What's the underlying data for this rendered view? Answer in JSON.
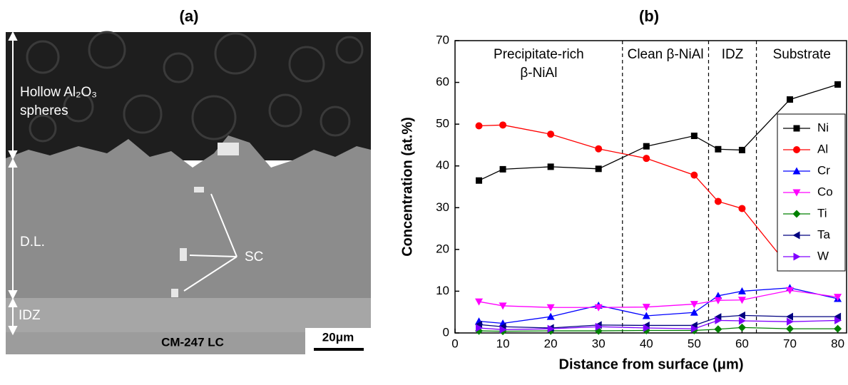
{
  "image": {
    "title": "(a)",
    "coating_label": [
      "Hollow Al₂O₃",
      "spheres"
    ],
    "diffusion_label": "D.L.",
    "phase_label": "SC",
    "idz_label": "IDZ",
    "substrate_label": "CM-247 LC",
    "scale_bar": "20μm"
  },
  "chart_data": {
    "type": "line",
    "title": "(b)",
    "x_label": "Distance from surface (μm)",
    "y_label": "Concentration (at.%)",
    "x": [
      5,
      10,
      20,
      30,
      40,
      50,
      55,
      60,
      70,
      80
    ],
    "series": [
      {
        "name": "Ni",
        "color": "#000000",
        "marker": "square",
        "values": [
          36.5,
          39.2,
          39.8,
          39.3,
          44.7,
          47.2,
          44.0,
          43.8,
          55.9,
          59.5
        ]
      },
      {
        "name": "Al",
        "color": "#ff0000",
        "marker": "circle",
        "values": [
          49.6,
          49.8,
          47.6,
          44.1,
          41.8,
          37.8,
          31.5,
          29.8,
          15.6,
          15.9
        ]
      },
      {
        "name": "Cr",
        "color": "#0000ff",
        "marker": "triangle-up",
        "values": [
          2.8,
          2.3,
          3.9,
          6.6,
          4.1,
          4.9,
          8.9,
          10.0,
          10.8,
          8.2
        ]
      },
      {
        "name": "Co",
        "color": "#ff00ff",
        "marker": "triangle-down",
        "values": [
          7.5,
          6.5,
          6.1,
          6.1,
          6.2,
          6.9,
          7.8,
          7.9,
          10.2,
          8.6
        ]
      },
      {
        "name": "Ti",
        "color": "#008000",
        "marker": "diamond",
        "values": [
          0.5,
          0.4,
          0.5,
          0.5,
          0.6,
          0.6,
          0.9,
          1.3,
          1.0,
          1.0
        ]
      },
      {
        "name": "Ta",
        "color": "#000080",
        "marker": "triangle-left",
        "values": [
          2.0,
          1.5,
          1.2,
          1.9,
          1.8,
          1.8,
          3.8,
          4.2,
          3.9,
          3.9
        ]
      },
      {
        "name": "W",
        "color": "#8000ff",
        "marker": "triangle-right",
        "values": [
          1.2,
          0.8,
          1.0,
          1.5,
          1.2,
          1.0,
          3.0,
          2.9,
          2.7,
          3.0
        ]
      }
    ],
    "boundaries": [
      35,
      53,
      63
    ],
    "regions": [
      [
        "Precipitate-rich",
        "β-NiAl"
      ],
      [
        "Clean β-NiAl"
      ],
      [
        "IDZ"
      ],
      [
        "Substrate"
      ]
    ],
    "xlim": [
      0,
      82
    ],
    "ylim": [
      0,
      70
    ],
    "xticks": [
      0,
      10,
      20,
      30,
      40,
      50,
      60,
      70,
      80
    ],
    "yticks": [
      0,
      10,
      20,
      30,
      40,
      50,
      60,
      70
    ],
    "legend": "upper right"
  }
}
